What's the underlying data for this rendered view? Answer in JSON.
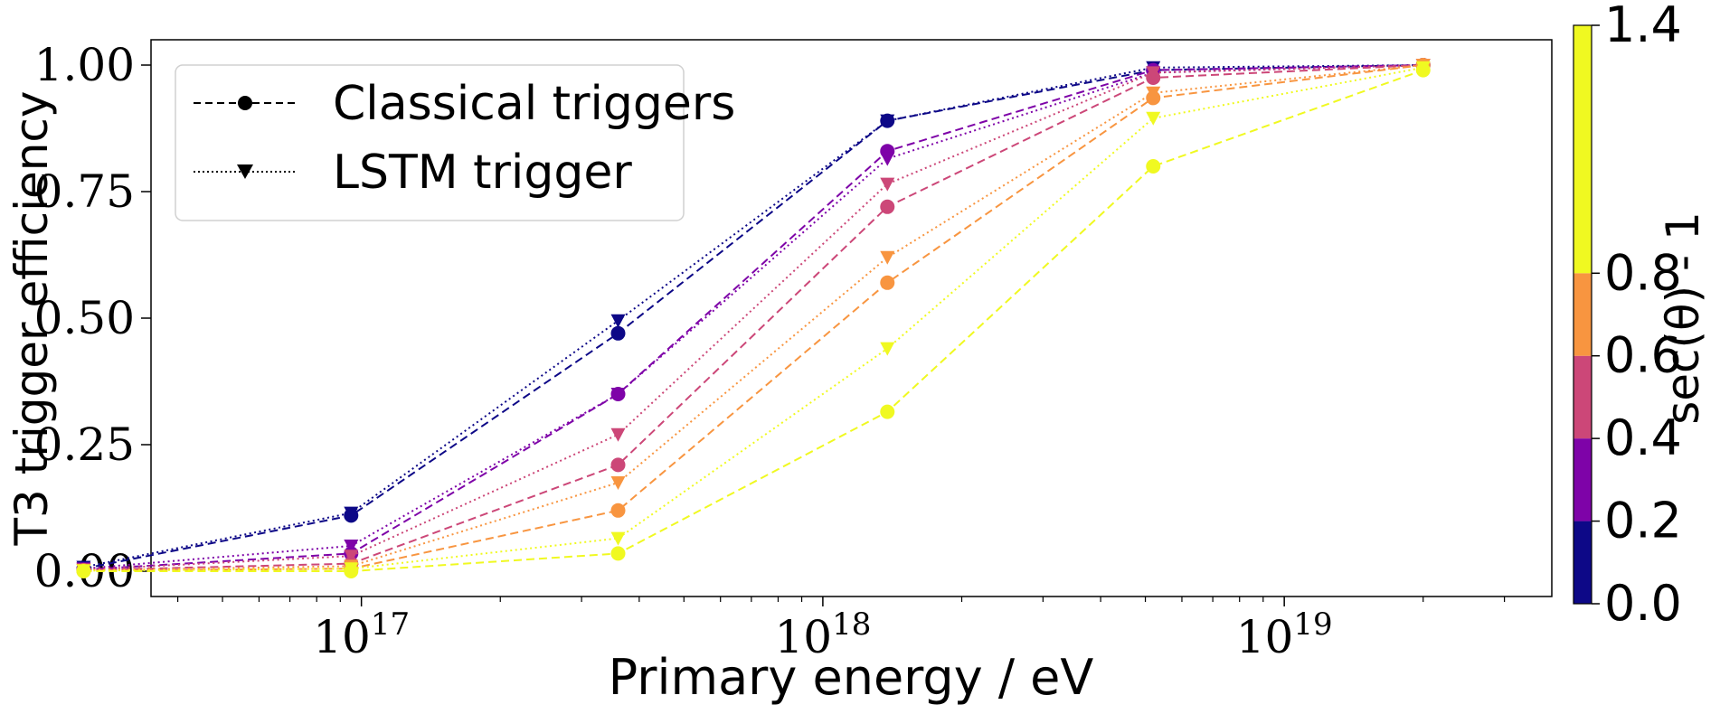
{
  "chart_data": {
    "type": "line",
    "xscale": "log",
    "xlim": [
      3.5e+16,
      3.8e+19
    ],
    "ylim": [
      -0.05,
      1.05
    ],
    "xlabel": "Primary energy / eV",
    "ylabel": "T3 trigger efficiency",
    "x_ticks": [
      {
        "value": 1e+17,
        "base": "10",
        "exp": "17"
      },
      {
        "value": 1e+18,
        "base": "10",
        "exp": "18"
      },
      {
        "value": 1e+19,
        "base": "10",
        "exp": "19"
      }
    ],
    "y_ticks": [
      {
        "value": 0.0,
        "label": "0.00"
      },
      {
        "value": 0.25,
        "label": "0.25"
      },
      {
        "value": 0.5,
        "label": "0.50"
      },
      {
        "value": 0.75,
        "label": "0.75"
      },
      {
        "value": 1.0,
        "label": "1.00"
      }
    ],
    "x": [
      2.5e+16,
      9.5e+16,
      3.6e+17,
      1.38e+18,
      5.2e+18,
      2e+19
    ],
    "legend": {
      "location": "upper left",
      "entries": [
        {
          "label": "Classical triggers",
          "linestyle": "dashed",
          "marker": "circle"
        },
        {
          "label": "LSTM trigger",
          "linestyle": "dotted",
          "marker": "triangle-down"
        }
      ]
    },
    "colorbar": {
      "label": "sec(θ) - 1",
      "bins": [
        0.0,
        0.2,
        0.4,
        0.6,
        0.8,
        1.4
      ],
      "tick_labels": [
        "0.0",
        "0.2",
        "0.4",
        "0.6",
        "0.8",
        "1.4"
      ],
      "colors": [
        "#0d0887",
        "#7e03a8",
        "#cc4778",
        "#f89540",
        "#f0f921"
      ]
    },
    "series": [
      {
        "bin": "0.0-0.2",
        "trigger": "Classical triggers",
        "color": "#0d0887",
        "values": [
          0.005,
          0.11,
          0.47,
          0.89,
          0.99,
          1.0
        ]
      },
      {
        "bin": "0.0-0.2",
        "trigger": "LSTM trigger",
        "color": "#0d0887",
        "values": [
          0.008,
          0.115,
          0.495,
          0.89,
          0.995,
          1.0
        ]
      },
      {
        "bin": "0.2-0.4",
        "trigger": "Classical triggers",
        "color": "#7e03a8",
        "values": [
          0.003,
          0.035,
          0.35,
          0.83,
          0.99,
          1.0
        ]
      },
      {
        "bin": "0.2-0.4",
        "trigger": "LSTM trigger",
        "color": "#7e03a8",
        "values": [
          0.005,
          0.05,
          0.35,
          0.815,
          0.985,
          1.0
        ]
      },
      {
        "bin": "0.4-0.6",
        "trigger": "Classical triggers",
        "color": "#cc4778",
        "values": [
          0.002,
          0.015,
          0.21,
          0.72,
          0.975,
          1.0
        ]
      },
      {
        "bin": "0.4-0.6",
        "trigger": "LSTM trigger",
        "color": "#cc4778",
        "values": [
          0.003,
          0.03,
          0.27,
          0.765,
          0.985,
          1.0
        ]
      },
      {
        "bin": "0.6-0.8",
        "trigger": "Classical triggers",
        "color": "#f89540",
        "values": [
          0.001,
          0.005,
          0.12,
          0.57,
          0.935,
          1.0
        ]
      },
      {
        "bin": "0.6-0.8",
        "trigger": "LSTM trigger",
        "color": "#f89540",
        "values": [
          0.002,
          0.01,
          0.175,
          0.62,
          0.945,
          1.0
        ]
      },
      {
        "bin": "0.8-1.4",
        "trigger": "Classical triggers",
        "color": "#f0f921",
        "values": [
          0.0,
          0.0,
          0.035,
          0.315,
          0.8,
          0.99
        ]
      },
      {
        "bin": "0.8-1.4",
        "trigger": "LSTM trigger",
        "color": "#f0f921",
        "values": [
          0.001,
          0.005,
          0.065,
          0.44,
          0.895,
          0.995
        ]
      }
    ]
  }
}
